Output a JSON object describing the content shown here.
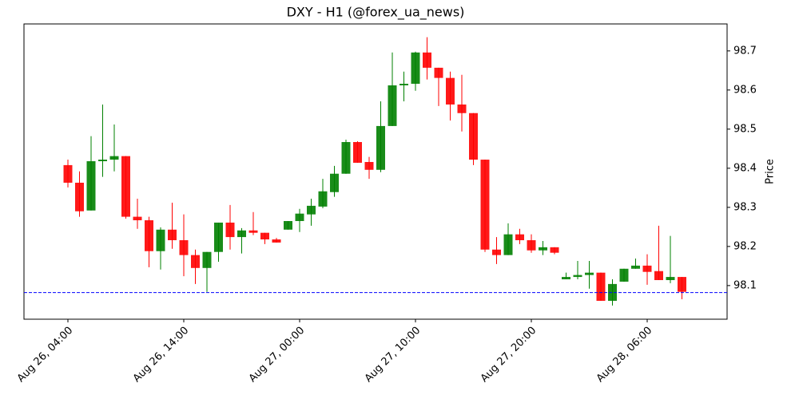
{
  "chart_data": {
    "type": "candlestick",
    "title": "DXY - H1 (@forex_ua_news)",
    "y_label": "Price",
    "x": [
      "Aug 26, 04:00",
      "Aug 26, 05:00",
      "Aug 26, 06:00",
      "Aug 26, 07:00",
      "Aug 26, 08:00",
      "Aug 26, 09:00",
      "Aug 26, 10:00",
      "Aug 26, 11:00",
      "Aug 26, 12:00",
      "Aug 26, 13:00",
      "Aug 26, 14:00",
      "Aug 26, 15:00",
      "Aug 26, 16:00",
      "Aug 26, 17:00",
      "Aug 26, 18:00",
      "Aug 26, 19:00",
      "Aug 26, 20:00",
      "Aug 26, 21:00",
      "Aug 26, 22:00",
      "Aug 26, 23:00",
      "Aug 27, 00:00",
      "Aug 27, 01:00",
      "Aug 27, 02:00",
      "Aug 27, 03:00",
      "Aug 27, 04:00",
      "Aug 27, 05:00",
      "Aug 27, 06:00",
      "Aug 27, 07:00",
      "Aug 27, 08:00",
      "Aug 27, 09:00",
      "Aug 27, 10:00",
      "Aug 27, 11:00",
      "Aug 27, 12:00",
      "Aug 27, 13:00",
      "Aug 27, 14:00",
      "Aug 27, 15:00",
      "Aug 27, 16:00",
      "Aug 27, 17:00",
      "Aug 27, 18:00",
      "Aug 27, 19:00",
      "Aug 27, 20:00",
      "Aug 27, 21:00",
      "Aug 27, 22:00",
      "Aug 27, 23:00",
      "Aug 28, 00:00",
      "Aug 28, 01:00",
      "Aug 28, 02:00",
      "Aug 28, 03:00",
      "Aug 28, 04:00",
      "Aug 28, 05:00",
      "Aug 28, 06:00",
      "Aug 28, 07:00",
      "Aug 28, 08:00",
      "Aug 28, 09:00"
    ],
    "open": [
      98.408,
      98.363,
      98.292,
      98.418,
      98.422,
      98.431,
      98.276,
      98.267,
      98.188,
      98.243,
      98.216,
      98.178,
      98.145,
      98.186,
      98.261,
      98.224,
      98.241,
      98.235,
      98.218,
      98.243,
      98.265,
      98.282,
      98.302,
      98.339,
      98.386,
      98.467,
      98.416,
      98.396,
      98.508,
      98.612,
      98.616,
      98.696,
      98.657,
      98.631,
      98.563,
      98.541,
      98.422,
      98.192,
      98.178,
      98.231,
      98.216,
      98.19,
      98.198,
      98.116,
      98.122,
      98.127,
      98.133,
      98.061,
      98.11,
      98.143,
      98.151,
      98.137,
      98.114,
      98.122
    ],
    "high": [
      98.422,
      98.392,
      98.482,
      98.563,
      98.512,
      98.431,
      98.322,
      98.276,
      98.249,
      98.312,
      98.282,
      98.192,
      98.186,
      98.261,
      98.306,
      98.247,
      98.288,
      98.235,
      98.222,
      98.265,
      98.296,
      98.322,
      98.373,
      98.406,
      98.473,
      98.469,
      98.429,
      98.571,
      98.696,
      98.647,
      98.698,
      98.735,
      98.657,
      98.647,
      98.639,
      98.541,
      98.422,
      98.224,
      98.259,
      98.245,
      98.231,
      98.214,
      98.198,
      98.133,
      98.163,
      98.163,
      98.133,
      98.116,
      98.143,
      98.169,
      98.18,
      98.253,
      98.227,
      98.122
    ],
    "low": [
      98.351,
      98.276,
      98.292,
      98.378,
      98.392,
      98.271,
      98.245,
      98.147,
      98.141,
      98.194,
      98.124,
      98.104,
      98.084,
      98.161,
      98.192,
      98.182,
      98.229,
      98.206,
      98.21,
      98.243,
      98.237,
      98.253,
      98.298,
      98.327,
      98.386,
      98.414,
      98.373,
      98.39,
      98.508,
      98.571,
      98.598,
      98.627,
      98.559,
      98.522,
      98.494,
      98.408,
      98.186,
      98.155,
      98.178,
      98.206,
      98.184,
      98.178,
      98.18,
      98.116,
      98.116,
      98.092,
      98.061,
      98.049,
      98.11,
      98.143,
      98.102,
      98.114,
      98.106,
      98.065
    ],
    "close": [
      98.363,
      98.29,
      98.418,
      98.422,
      98.431,
      98.276,
      98.267,
      98.188,
      98.243,
      98.216,
      98.178,
      98.145,
      98.186,
      98.261,
      98.224,
      98.241,
      98.235,
      98.218,
      98.21,
      98.265,
      98.284,
      98.304,
      98.341,
      98.386,
      98.467,
      98.414,
      98.396,
      98.508,
      98.612,
      98.616,
      98.696,
      98.657,
      98.631,
      98.563,
      98.541,
      98.422,
      98.192,
      98.178,
      98.231,
      98.216,
      98.19,
      98.198,
      98.184,
      98.122,
      98.127,
      98.133,
      98.061,
      98.104,
      98.143,
      98.151,
      98.135,
      98.114,
      98.122,
      98.084
    ],
    "up_color": "green",
    "down_color": "red",
    "xticks": [
      "Aug 26, 04:00",
      "Aug 26, 14:00",
      "Aug 27, 00:00",
      "Aug 27, 10:00",
      "Aug 27, 20:00",
      "Aug 28, 06:00"
    ],
    "ylim": [
      98.014,
      98.769
    ],
    "yticks": [
      98.1,
      98.2,
      98.3,
      98.4,
      98.5,
      98.6,
      98.7
    ],
    "y_axis_side": "right",
    "hline": {
      "value": 98.082,
      "color": "blue",
      "style": "dashed"
    }
  }
}
